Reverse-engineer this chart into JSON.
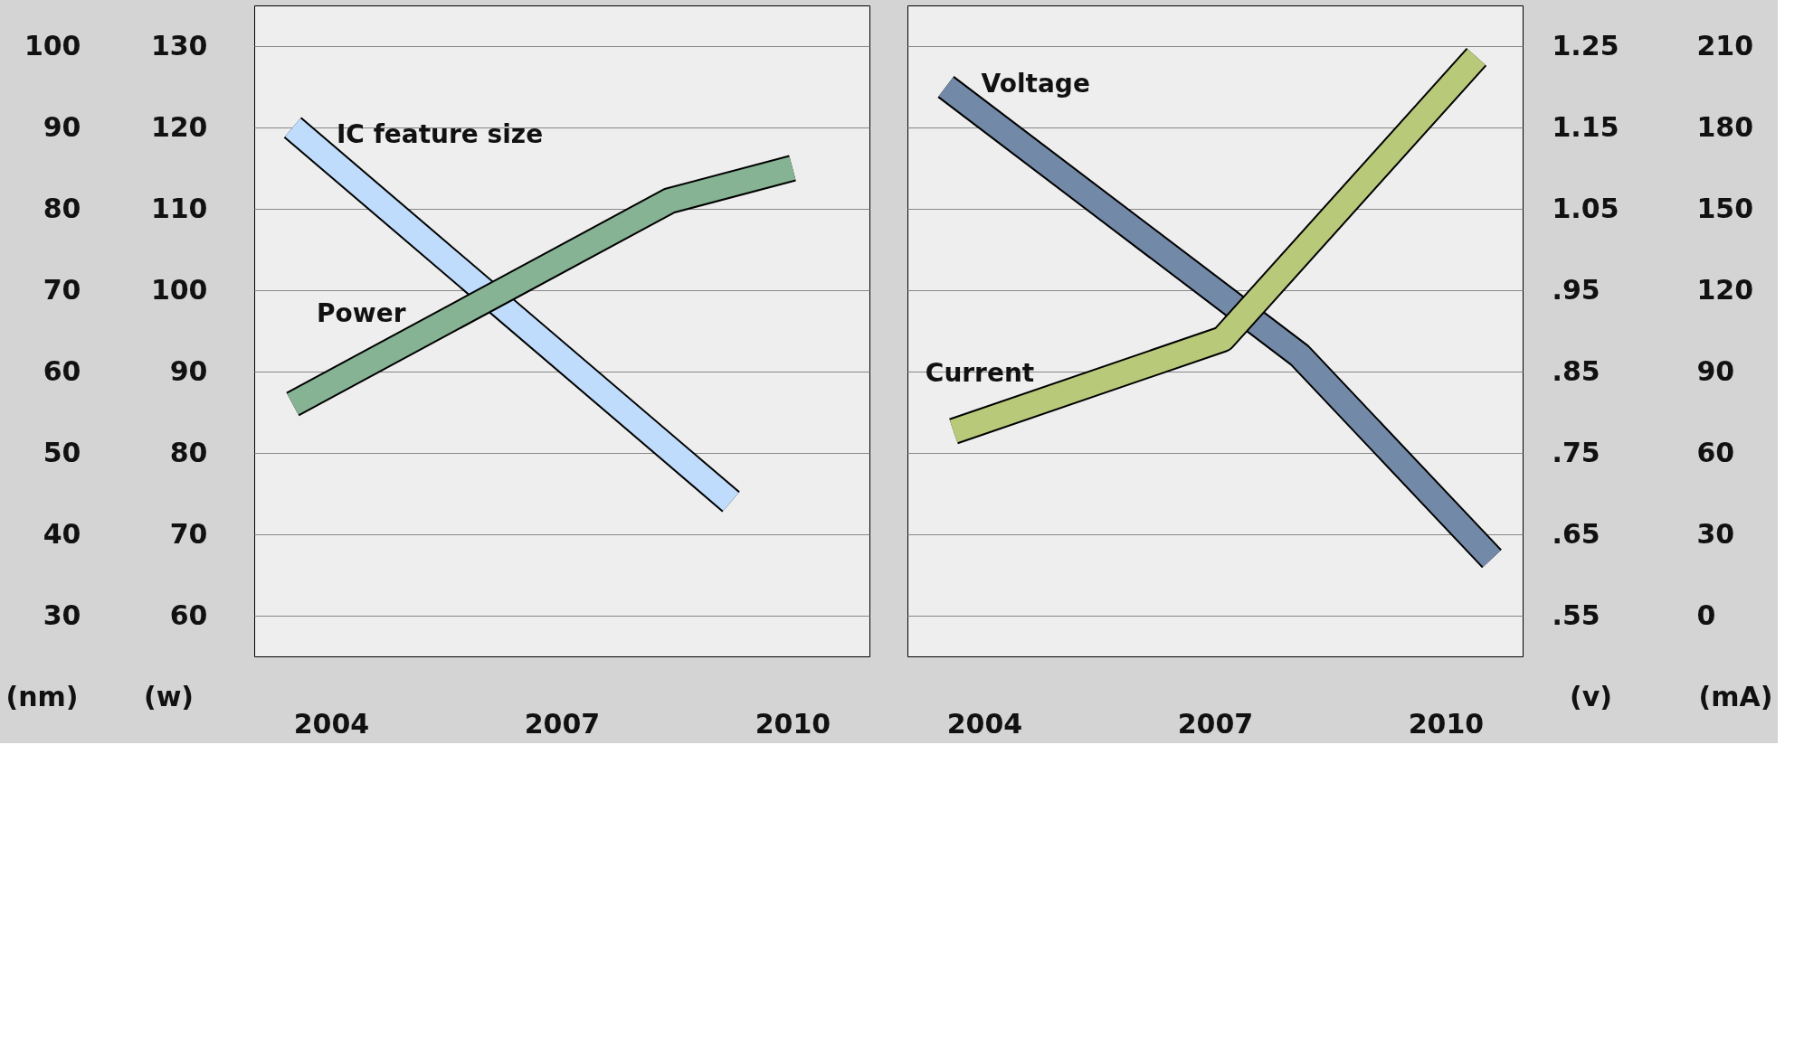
{
  "chart_data": [
    {
      "type": "line",
      "grid": "y",
      "line_style": "solid",
      "xlim": [
        2003,
        2011
      ],
      "xticks": [
        2004,
        2007,
        2010
      ],
      "ylabel": "(nm)",
      "ylim": [
        25,
        105
      ],
      "yticks": [
        30,
        40,
        50,
        60,
        70,
        80,
        90,
        100
      ],
      "y2label": "(w)",
      "y2lim": [
        55,
        135
      ],
      "y2ticks": [
        60,
        70,
        80,
        90,
        100,
        110,
        120,
        130
      ],
      "series": [
        {
          "name": "IC feature size",
          "color": "#bfdcfc",
          "axis": "y",
          "x": [
            2003.5,
            2009.2
          ],
          "values": [
            90,
            44
          ]
        },
        {
          "name": "Power",
          "color": "#86b393",
          "axis": "y2",
          "x": [
            2003.5,
            2008.4,
            2010.0
          ],
          "values": [
            86,
            111,
            115
          ]
        }
      ]
    },
    {
      "type": "line",
      "grid": "y",
      "line_style": "solid",
      "xlim": [
        2003,
        2011
      ],
      "xticks": [
        2004,
        2007,
        2010
      ],
      "ylabel": "(v)",
      "ylim": [
        0.5,
        1.3
      ],
      "yticks": [
        {
          "value": 0.55,
          "label": ".55"
        },
        {
          "value": 0.65,
          "label": ".65"
        },
        {
          "value": 0.75,
          "label": ".75"
        },
        {
          "value": 0.85,
          "label": ".85"
        },
        {
          "value": 0.95,
          "label": ".95"
        },
        {
          "value": 1.05,
          "label": "1.05"
        },
        {
          "value": 1.15,
          "label": "1.15"
        },
        {
          "value": 1.25,
          "label": "1.25"
        }
      ],
      "y2label": "(mA)",
      "y2lim": [
        -15,
        225
      ],
      "y2ticks": [
        0,
        30,
        60,
        90,
        120,
        150,
        180,
        210
      ],
      "series": [
        {
          "name": "Voltage",
          "color": "#7389a8",
          "axis": "y",
          "x": [
            2003.5,
            2008.1,
            2010.6
          ],
          "values": [
            1.2,
            0.87,
            0.62
          ]
        },
        {
          "name": "Current",
          "color": "#b9c97a",
          "axis": "y2",
          "x": [
            2003.6,
            2007.1,
            2010.4
          ],
          "values": [
            68,
            102,
            206
          ]
        }
      ]
    }
  ]
}
